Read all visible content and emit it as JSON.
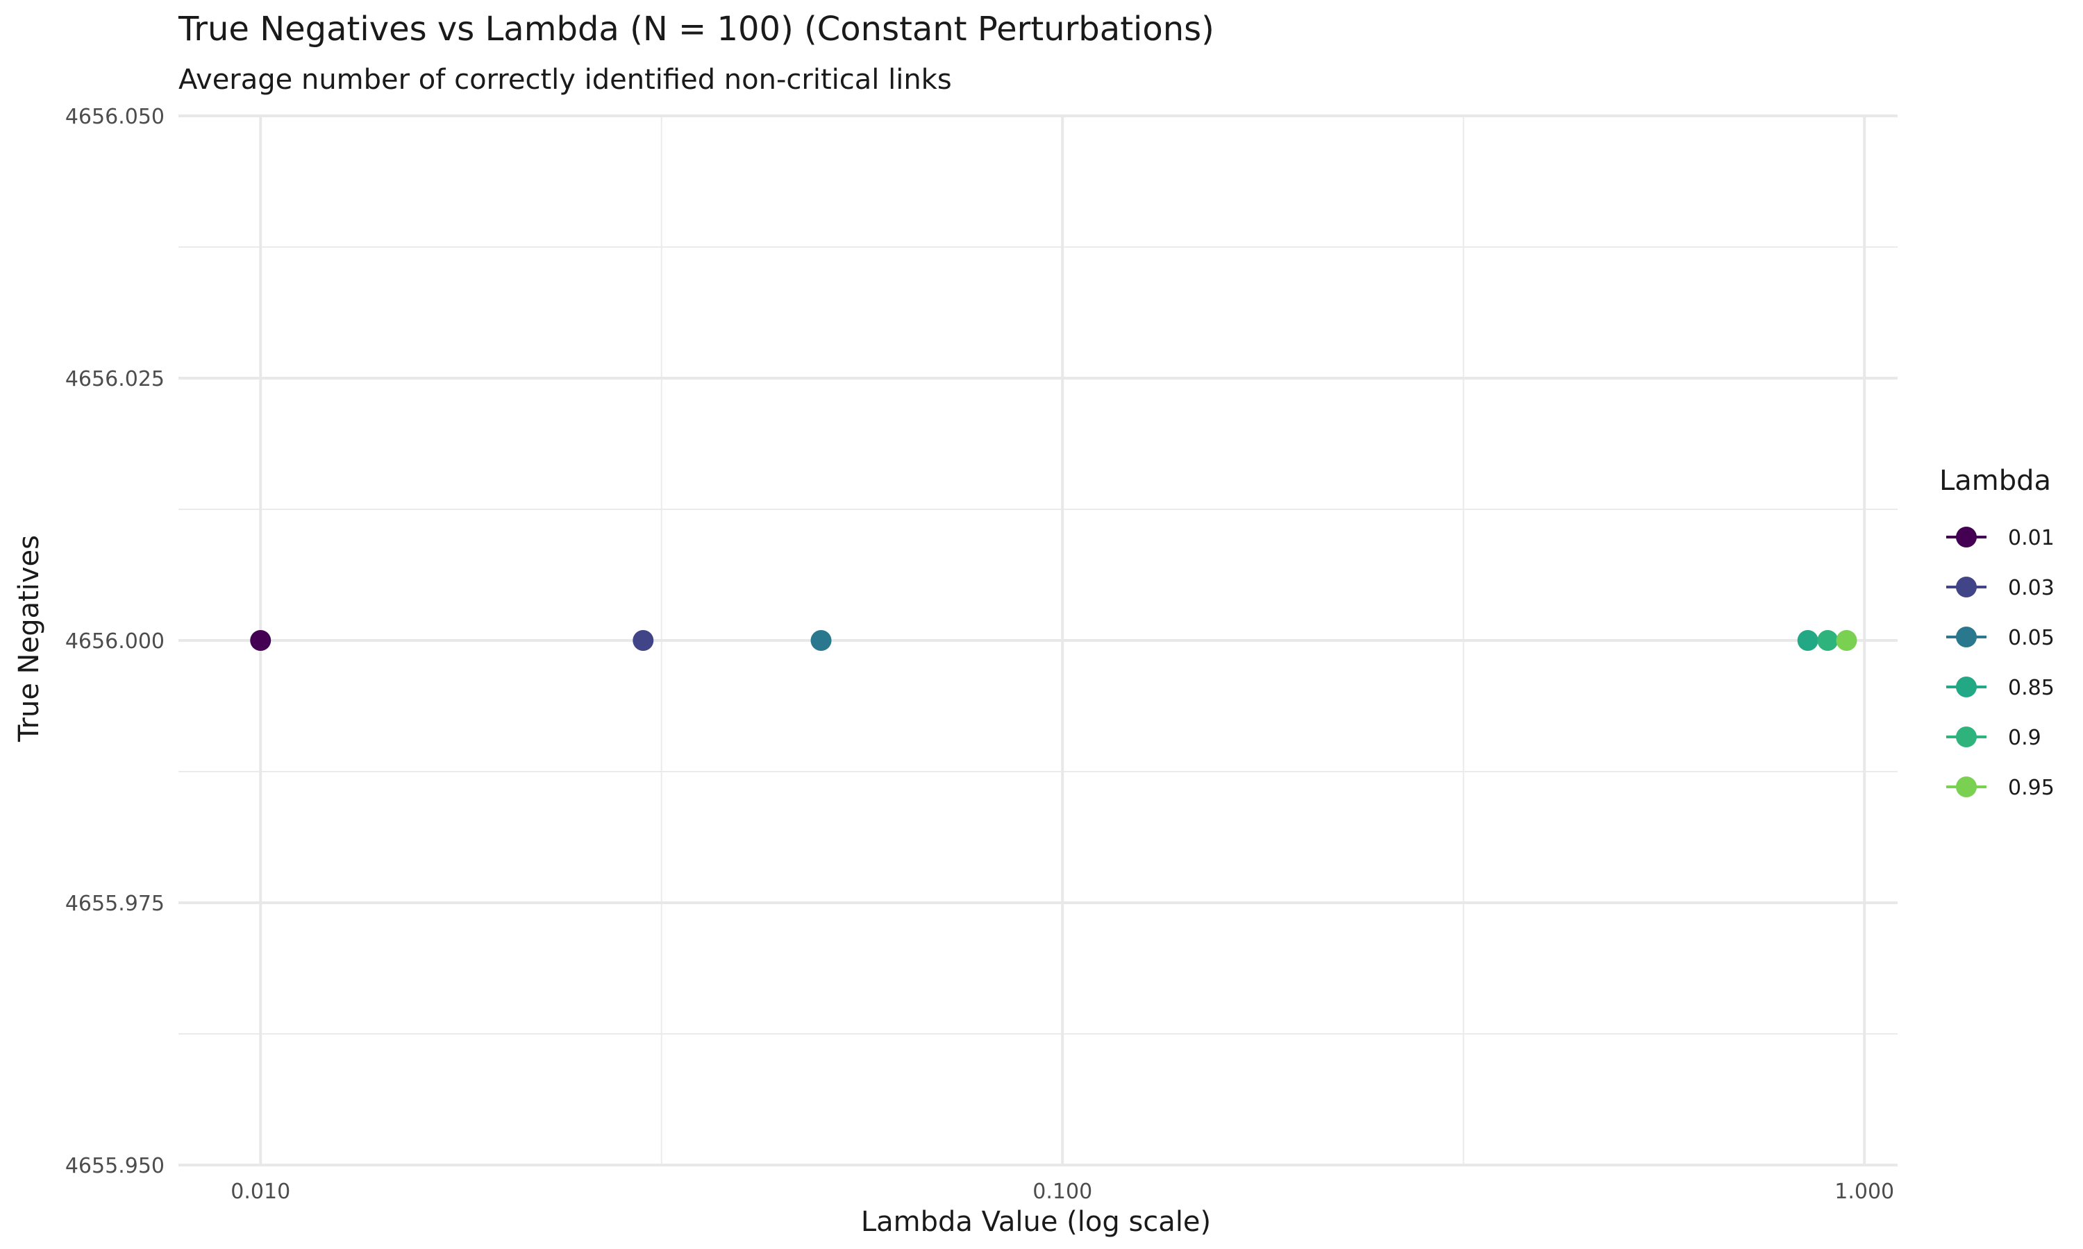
{
  "chart_data": {
    "type": "scatter",
    "title": "True Negatives vs Lambda (N = 100) (Constant Perturbations)",
    "subtitle": "Average number of correctly identified non-critical links",
    "xlabel": "Lambda Value (log scale)",
    "ylabel": "True Negatives",
    "x_scale": "log",
    "xlim": [
      0.0079,
      1.1
    ],
    "ylim": [
      4655.95,
      4656.05
    ],
    "x_ticks": [
      0.01,
      0.1,
      1.0
    ],
    "x_tick_labels": [
      "0.010",
      "0.100",
      "1.000"
    ],
    "y_ticks": [
      4655.95,
      4655.975,
      4656.0,
      4656.025,
      4656.05
    ],
    "y_tick_labels": [
      "4655.950",
      "4655.975",
      "4656.000",
      "4656.025",
      "4656.050"
    ],
    "grid": true,
    "legend": {
      "title": "Lambda",
      "position": "right"
    },
    "series": [
      {
        "name": "0.01",
        "color": "#440154",
        "x": [
          0.01
        ],
        "y": [
          4656.0
        ]
      },
      {
        "name": "0.03",
        "color": "#414487",
        "x": [
          0.03
        ],
        "y": [
          4656.0
        ]
      },
      {
        "name": "0.05",
        "color": "#2A788E",
        "x": [
          0.05
        ],
        "y": [
          4656.0
        ]
      },
      {
        "name": "0.85",
        "color": "#22A884",
        "x": [
          0.85
        ],
        "y": [
          4656.0
        ]
      },
      {
        "name": "0.9",
        "color": "#2EB37C",
        "x": [
          0.9
        ],
        "y": [
          4656.0
        ]
      },
      {
        "name": "0.95",
        "color": "#7AD151",
        "x": [
          0.95
        ],
        "y": [
          4656.0
        ]
      }
    ]
  }
}
